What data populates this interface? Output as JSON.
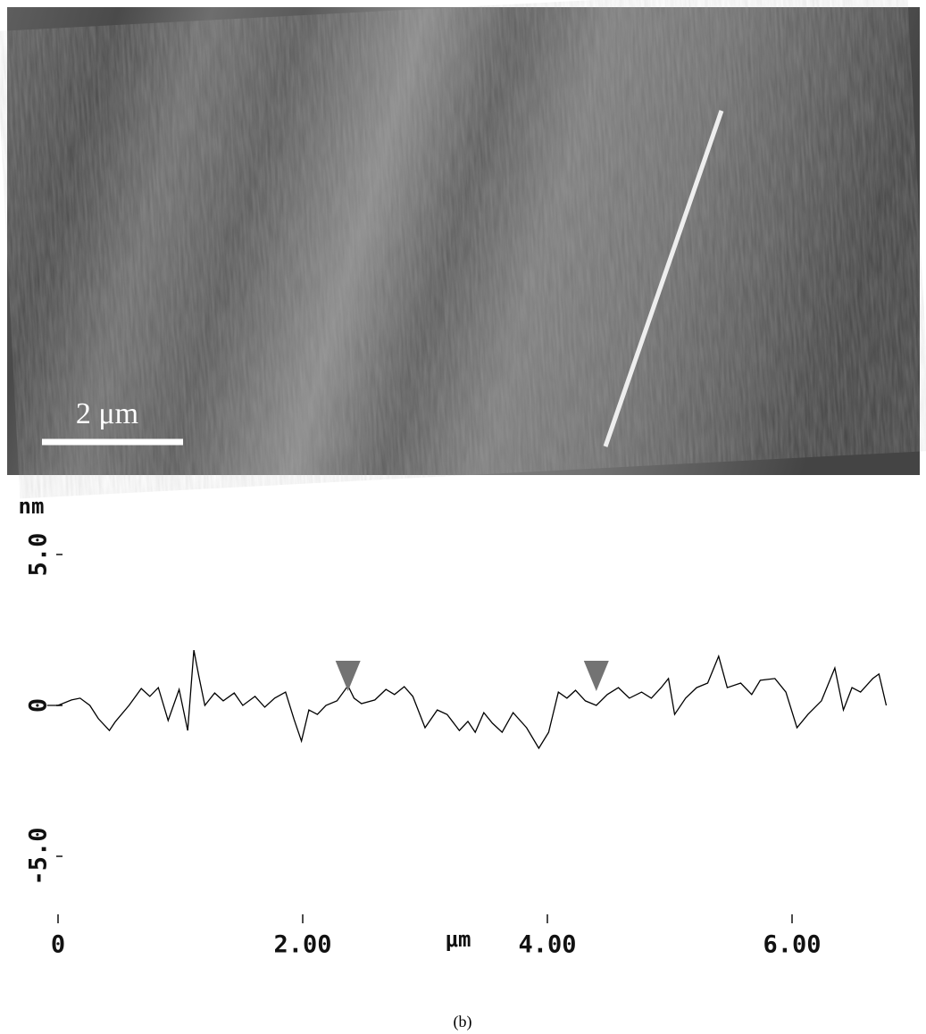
{
  "image": {
    "scale_bar_label": "2 μm"
  },
  "caption": "(b)",
  "chart_data": {
    "type": "line",
    "y_label": "nm",
    "x_label": "μm",
    "color": "#000000",
    "x": [
      -0.09,
      0,
      0.11,
      0.18,
      0.26,
      0.33,
      0.42,
      0.47,
      0.58,
      0.68,
      0.75,
      0.82,
      0.9,
      0.99,
      1.06,
      1.11,
      1.15,
      1.2,
      1.28,
      1.35,
      1.44,
      1.51,
      1.61,
      1.69,
      1.77,
      1.86,
      1.93,
      1.99,
      2.05,
      2.12,
      2.19,
      2.28,
      2.37,
      2.42,
      2.48,
      2.59,
      2.68,
      2.75,
      2.83,
      2.9,
      3.0,
      3.1,
      3.18,
      3.28,
      3.35,
      3.41,
      3.48,
      3.55,
      3.63,
      3.72,
      3.83,
      3.93,
      4.01,
      4.09,
      4.16,
      4.23,
      4.31,
      4.4,
      4.49,
      4.58,
      4.67,
      4.77,
      4.85,
      4.93,
      4.99,
      5.04,
      5.13,
      5.22,
      5.31,
      5.4,
      5.47,
      5.58,
      5.67,
      5.74,
      5.86,
      5.95,
      6.04,
      6.13,
      6.24,
      6.35,
      6.42,
      6.49,
      6.56,
      6.66,
      6.71,
      6.77
    ],
    "values": [
      0,
      0,
      0.18,
      0.24,
      0,
      -0.44,
      -0.83,
      -0.53,
      0,
      0.56,
      0.3,
      0.59,
      -0.5,
      0.53,
      -0.83,
      1.83,
      0.98,
      0,
      0.41,
      0.15,
      0.41,
      0,
      0.3,
      -0.06,
      0.24,
      0.44,
      -0.47,
      -1.18,
      -0.15,
      -0.3,
      0,
      0.15,
      0.65,
      0.24,
      0.06,
      0.18,
      0.53,
      0.36,
      0.62,
      0.3,
      -0.74,
      -0.15,
      -0.3,
      -0.83,
      -0.53,
      -0.89,
      -0.24,
      -0.59,
      -0.89,
      -0.24,
      -0.74,
      -1.42,
      -0.89,
      0.44,
      0.24,
      0.5,
      0.15,
      0,
      0.36,
      0.59,
      0.24,
      0.44,
      0.24,
      0.59,
      0.89,
      -0.3,
      0.24,
      0.59,
      0.74,
      1.63,
      0.59,
      0.74,
      0.36,
      0.83,
      0.89,
      0.44,
      -0.74,
      -0.3,
      0.15,
      1.24,
      -0.15,
      0.59,
      0.44,
      0.89,
      1.04,
      0
    ],
    "markers": [
      2.37,
      4.4
    ],
    "marker_color": "#737373",
    "xlim": [
      -0.1,
      7.0
    ],
    "ylim": [
      -7,
      7
    ],
    "xticks": [
      0,
      {
        "value": 2,
        "label": "2.00"
      },
      {
        "value": 4,
        "label": "4.00"
      },
      {
        "value": 6,
        "label": "6.00"
      }
    ],
    "yticks": [
      {
        "value": 5,
        "label": "5.0"
      },
      0,
      {
        "value": -5,
        "label": "-5.0"
      }
    ]
  }
}
